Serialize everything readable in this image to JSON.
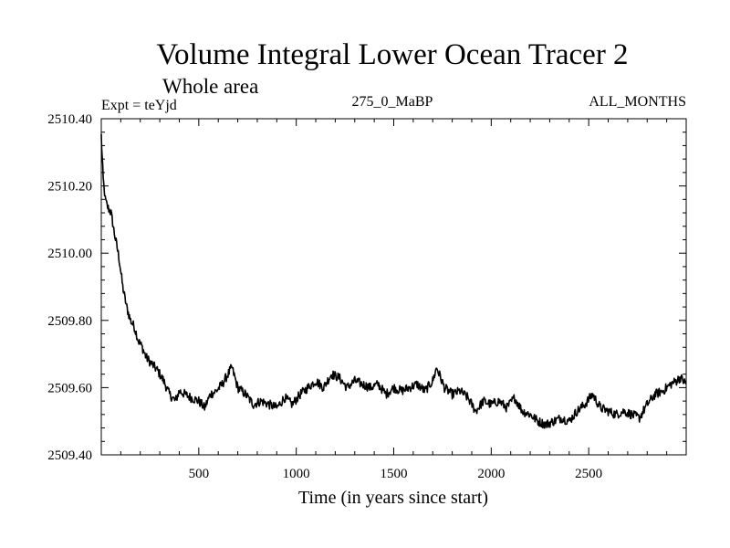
{
  "chart_data": {
    "type": "line",
    "title": "Volume Integral Lower Ocean Tracer 2",
    "subtitle": "Whole area",
    "annotations": {
      "left": "Expt = teYjd",
      "center": "275_0_MaBP",
      "right": "ALL_MONTHS"
    },
    "xlabel": "Time (in years since start)",
    "ylabel": "",
    "xlim": [
      0,
      3000
    ],
    "ylim": [
      2509.4,
      2510.4
    ],
    "xticks": [
      500,
      1000,
      1500,
      2000,
      2500
    ],
    "yticks": [
      2509.4,
      2509.6,
      2509.8,
      2510.0,
      2510.2,
      2510.4
    ],
    "ytick_labels": [
      "2509.40",
      "2509.60",
      "2509.80",
      "2510.00",
      "2510.20",
      "2510.40"
    ],
    "grid": false,
    "series": [
      {
        "name": "Volume integral",
        "color": "#000000",
        "x": [
          0,
          5,
          10,
          20,
          30,
          50,
          70,
          90,
          110,
          130,
          150,
          170,
          190,
          210,
          230,
          260,
          290,
          320,
          350,
          380,
          400,
          430,
          460,
          500,
          530,
          560,
          590,
          620,
          650,
          670,
          700,
          740,
          780,
          820,
          860,
          900,
          940,
          980,
          1020,
          1060,
          1100,
          1140,
          1180,
          1220,
          1260,
          1300,
          1340,
          1380,
          1420,
          1460,
          1500,
          1540,
          1580,
          1620,
          1660,
          1700,
          1720,
          1760,
          1800,
          1840,
          1880,
          1920,
          1960,
          2000,
          2040,
          2080,
          2120,
          2160,
          2200,
          2240,
          2280,
          2320,
          2360,
          2400,
          2440,
          2480,
          2520,
          2560,
          2600,
          2640,
          2680,
          2720,
          2760,
          2800,
          2840,
          2880,
          2920,
          2950,
          2970,
          3000
        ],
        "values": [
          2510.35,
          2510.28,
          2510.22,
          2510.16,
          2510.14,
          2510.12,
          2510.05,
          2509.99,
          2509.9,
          2509.84,
          2509.8,
          2509.78,
          2509.74,
          2509.72,
          2509.69,
          2509.67,
          2509.65,
          2509.62,
          2509.58,
          2509.56,
          2509.59,
          2509.58,
          2509.57,
          2509.56,
          2509.54,
          2509.58,
          2509.59,
          2509.61,
          2509.64,
          2509.66,
          2509.6,
          2509.58,
          2509.55,
          2509.56,
          2509.55,
          2509.54,
          2509.57,
          2509.55,
          2509.58,
          2509.6,
          2509.62,
          2509.6,
          2509.64,
          2509.63,
          2509.6,
          2509.62,
          2509.61,
          2509.6,
          2509.61,
          2509.58,
          2509.6,
          2509.59,
          2509.6,
          2509.61,
          2509.59,
          2509.62,
          2509.66,
          2509.6,
          2509.58,
          2509.59,
          2509.57,
          2509.53,
          2509.56,
          2509.55,
          2509.56,
          2509.54,
          2509.57,
          2509.53,
          2509.52,
          2509.5,
          2509.49,
          2509.5,
          2509.51,
          2509.5,
          2509.53,
          2509.55,
          2509.58,
          2509.54,
          2509.53,
          2509.52,
          2509.53,
          2509.52,
          2509.51,
          2509.55,
          2509.58,
          2509.59,
          2509.61,
          2509.62,
          2509.63,
          2509.61
        ]
      }
    ]
  }
}
